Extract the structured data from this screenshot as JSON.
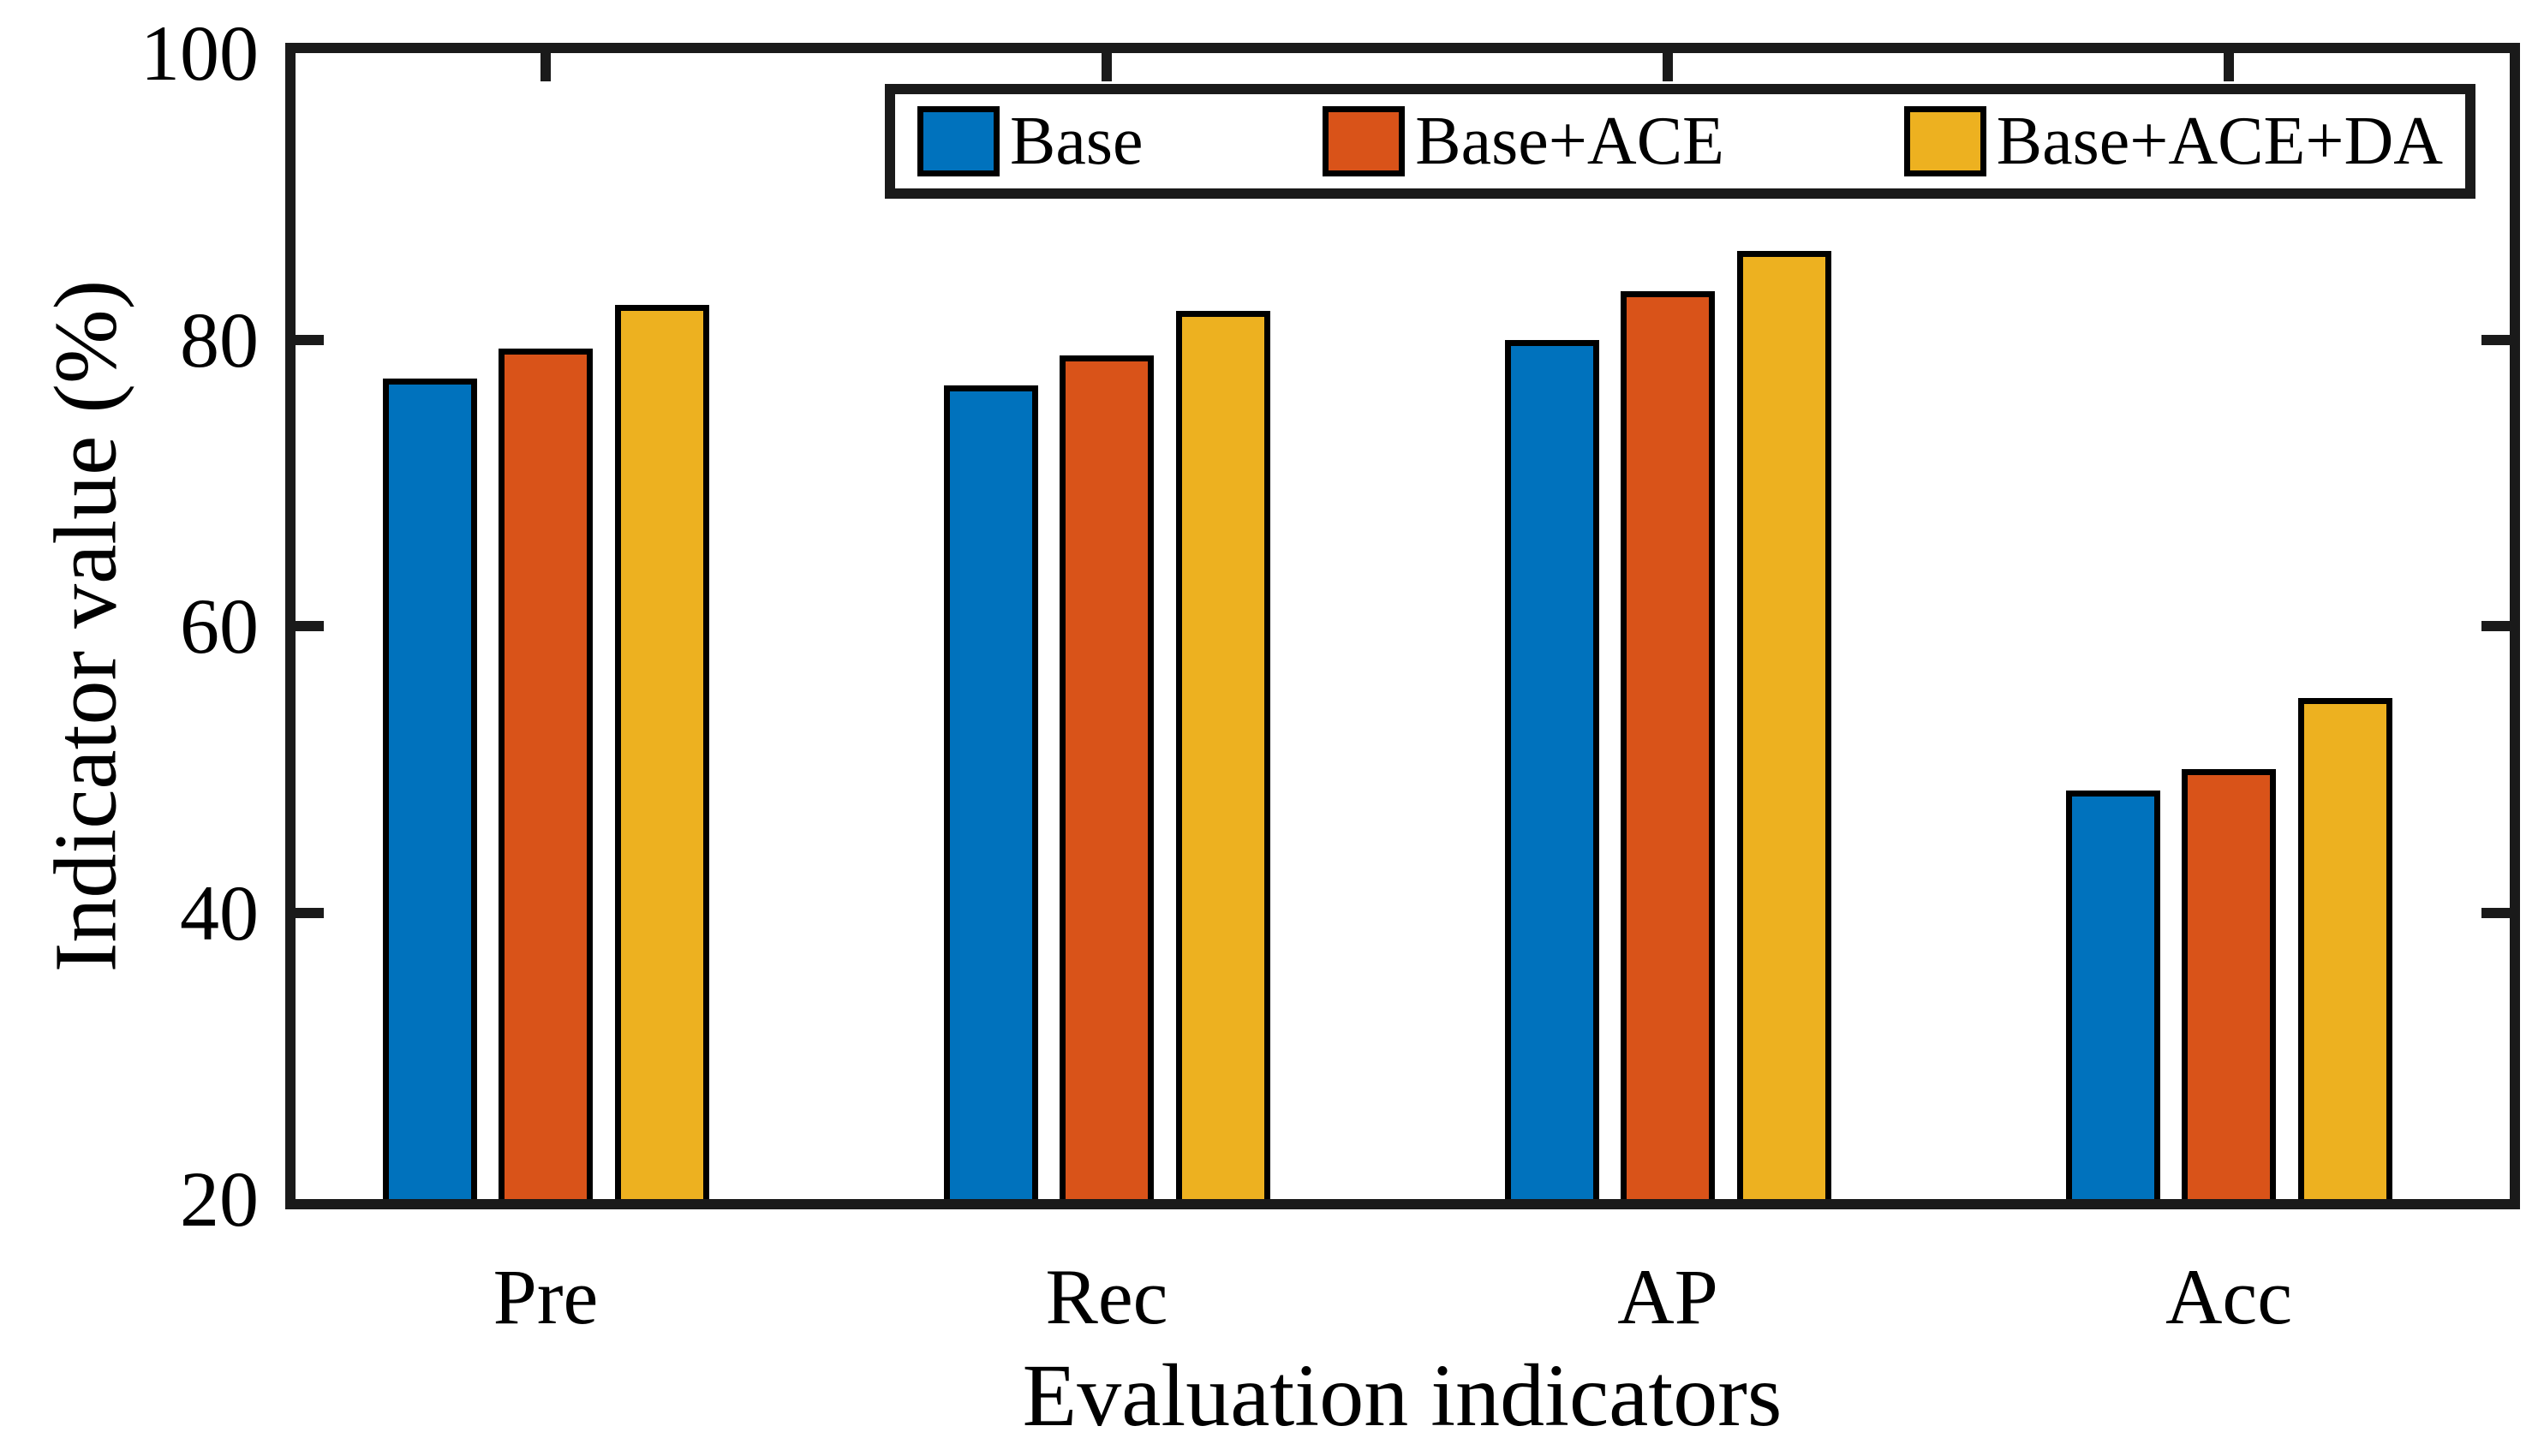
{
  "chart_data": {
    "type": "bar",
    "title": "",
    "categories": [
      "Pre",
      "Rec",
      "AP",
      "Acc"
    ],
    "series": [
      {
        "name": "Base",
        "color": "#0072BD",
        "values": [
          77.3,
          76.8,
          80.0,
          48.5
        ]
      },
      {
        "name": "Base+ACE",
        "color": "#D95319",
        "values": [
          79.4,
          78.9,
          83.4,
          50.0
        ]
      },
      {
        "name": "Base+ACE+DA",
        "color": "#EDB120",
        "values": [
          82.4,
          82.0,
          86.2,
          55.0
        ]
      }
    ],
    "xlabel": "Evaluation indicators",
    "ylabel": "Indicator value (%)",
    "ylim": [
      20,
      100
    ],
    "yticks": [
      100,
      80,
      60,
      40,
      20
    ],
    "grid": false,
    "legend_position": "top-inside",
    "axis_color": "#1a1a1a",
    "bar_edge_color": "#000000",
    "background_color": "#ffffff"
  }
}
